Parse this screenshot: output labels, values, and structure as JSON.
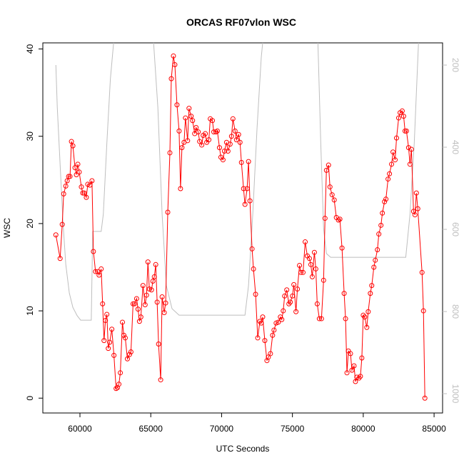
{
  "chart_data": {
    "type": "line",
    "title": "ORCAS RF07vlon WSC",
    "x_label": "UTC Seconds",
    "y_label": "WSC",
    "xlim": [
      57380,
      85600
    ],
    "ylim": [
      -1.7,
      40.7
    ],
    "y2lim": [
      1047,
      146
    ],
    "xticks": [
      60000,
      65000,
      70000,
      75000,
      80000,
      85000
    ],
    "yticks": [
      0,
      10,
      20,
      30,
      40
    ],
    "y2ticks": [
      200,
      400,
      600,
      800,
      1000
    ],
    "series": [
      {
        "color": "#ff0000",
        "markers": true,
        "x": [
          58300,
          58600,
          58750,
          58850,
          59000,
          59100,
          59200,
          59300,
          59400,
          59500,
          59650,
          59750,
          59850,
          59950,
          60100,
          60200,
          60300,
          60450,
          60550,
          60700,
          60850,
          60950,
          61100,
          61250,
          61350,
          61500,
          61600,
          61700,
          61800,
          61900,
          62000,
          62100,
          62250,
          62400,
          62550,
          62650,
          62750,
          62850,
          63000,
          63100,
          63200,
          63350,
          63500,
          63600,
          63750,
          63850,
          64000,
          64100,
          64200,
          64300,
          64450,
          64600,
          64700,
          64800,
          64900,
          65050,
          65150,
          65250,
          65350,
          65450,
          65550,
          65700,
          65800,
          65950,
          66050,
          66200,
          66350,
          66450,
          66600,
          66700,
          66850,
          67000,
          67100,
          67200,
          67350,
          67450,
          67600,
          67700,
          67850,
          67950,
          68100,
          68200,
          68350,
          68450,
          68600,
          68700,
          68850,
          68950,
          69100,
          69200,
          69350,
          69450,
          69600,
          69700,
          69850,
          69950,
          70100,
          70200,
          70350,
          70450,
          70600,
          70700,
          70800,
          70950,
          71050,
          71200,
          71300,
          71400,
          71550,
          71650,
          71800,
          71900,
          72000,
          72150,
          72250,
          72400,
          72550,
          72700,
          72800,
          72900,
          73050,
          73200,
          73300,
          73450,
          73600,
          73700,
          73850,
          74000,
          74150,
          74250,
          74350,
          74450,
          74600,
          74750,
          74850,
          75000,
          75100,
          75250,
          75350,
          75500,
          75600,
          75750,
          75900,
          76050,
          76200,
          76300,
          76400,
          76550,
          76650,
          76750,
          76900,
          77050,
          77200,
          77300,
          77400,
          77550,
          77650,
          77800,
          77950,
          78100,
          78250,
          78350,
          78500,
          78650,
          78750,
          78850,
          78950,
          79100,
          79200,
          79350,
          79450,
          79550,
          79700,
          79800,
          79900,
          80000,
          80100,
          80250,
          80350,
          80500,
          80600,
          80750,
          80850,
          81000,
          81100,
          81250,
          81350,
          81500,
          81600,
          81750,
          81850,
          82000,
          82100,
          82250,
          82350,
          82500,
          82600,
          82750,
          82850,
          82950,
          83050,
          83200,
          83300,
          83400,
          83550,
          83650,
          83750,
          83850,
          84150,
          84250,
          84350
        ],
        "values": [
          18.7,
          16.0,
          19.9,
          23.4,
          24.3,
          24.9,
          25.4,
          25.4,
          29.4,
          28.9,
          26.4,
          25.6,
          26.8,
          25.9,
          24.2,
          23.5,
          23.5,
          23.0,
          24.5,
          24.4,
          24.9,
          16.8,
          14.5,
          14.5,
          14.1,
          14.8,
          10.8,
          6.6,
          8.9,
          9.6,
          5.7,
          6.4,
          7.9,
          4.9,
          1.1,
          1.2,
          1.6,
          2.9,
          8.7,
          7.2,
          6.9,
          4.5,
          5.0,
          5.3,
          10.8,
          10.8,
          11.4,
          10.2,
          8.8,
          9.3,
          12.9,
          10.7,
          11.8,
          15.6,
          12.5,
          12.4,
          13.4,
          13.9,
          15.3,
          11.0,
          6.2,
          2.1,
          11.6,
          9.8,
          10.9,
          21.3,
          28.1,
          36.6,
          39.2,
          38.2,
          33.6,
          30.6,
          24.0,
          28.7,
          29.3,
          32.1,
          29.5,
          33.2,
          32.3,
          31.8,
          30.3,
          31.0,
          30.5,
          29.4,
          29.0,
          30.1,
          30.3,
          29.3,
          29.6,
          32.0,
          31.8,
          30.5,
          30.5,
          30.6,
          28.7,
          27.6,
          27.3,
          28.3,
          29.3,
          28.3,
          29.1,
          30.0,
          32.0,
          30.6,
          29.6,
          30.2,
          29.3,
          27.0,
          24.0,
          22.2,
          24.0,
          27.1,
          22.6,
          17.1,
          14.8,
          11.9,
          6.9,
          8.8,
          8.6,
          9.3,
          6.6,
          4.3,
          4.7,
          5.1,
          7.2,
          7.8,
          8.6,
          8.7,
          9.3,
          9.0,
          10.0,
          11.7,
          12.4,
          10.8,
          11.0,
          11.7,
          13.0,
          9.9,
          12.5,
          15.2,
          14.4,
          14.4,
          17.9,
          16.3,
          16.0,
          15.3,
          13.9,
          16.7,
          14.8,
          10.8,
          9.1,
          9.1,
          13.5,
          20.6,
          26.1,
          26.7,
          24.2,
          23.3,
          22.7,
          20.7,
          20.4,
          20.5,
          17.2,
          12.0,
          9.1,
          2.9,
          5.4,
          5.1,
          3.2,
          3.7,
          1.9,
          2.4,
          2.3,
          2.5,
          4.6,
          9.5,
          9.3,
          8.1,
          9.9,
          12.0,
          12.9,
          15.0,
          15.8,
          17.0,
          18.8,
          19.8,
          21.2,
          22.5,
          22.8,
          25.1,
          25.7,
          26.8,
          28.2,
          27.3,
          29.8,
          32.1,
          32.7,
          32.9,
          32.3,
          30.6,
          30.6,
          28.7,
          26.8,
          28.5,
          21.4,
          21.0,
          23.5,
          21.7,
          14.4,
          10.0,
          0.0
        ]
      },
      {
        "color": "#bebebe",
        "axis": "y2",
        "x": [
          58300,
          58400,
          58600,
          58800,
          59000,
          59250,
          59500,
          59800,
          60050,
          60800,
          60900,
          61500,
          61650,
          61900,
          62150,
          62400,
          62650,
          65000,
          65200,
          65500,
          65800,
          66100,
          66500,
          67000,
          71650,
          71900,
          72200,
          72500,
          72800,
          73000,
          73200,
          76600,
          76800,
          77000,
          77200,
          77400,
          77700,
          83000,
          83300,
          83600,
          83900,
          84100
        ],
        "values": [
          200,
          303,
          442,
          581,
          685,
          755,
          790,
          810,
          821,
          821,
          605,
          605,
          563,
          390,
          233,
          137,
          100,
          100,
          146,
          303,
          563,
          737,
          793,
          809,
          809,
          737,
          563,
          355,
          181,
          111,
          100,
          100,
          146,
          390,
          598,
          659,
          668,
          668,
          563,
          390,
          146,
          100
        ]
      }
    ]
  }
}
